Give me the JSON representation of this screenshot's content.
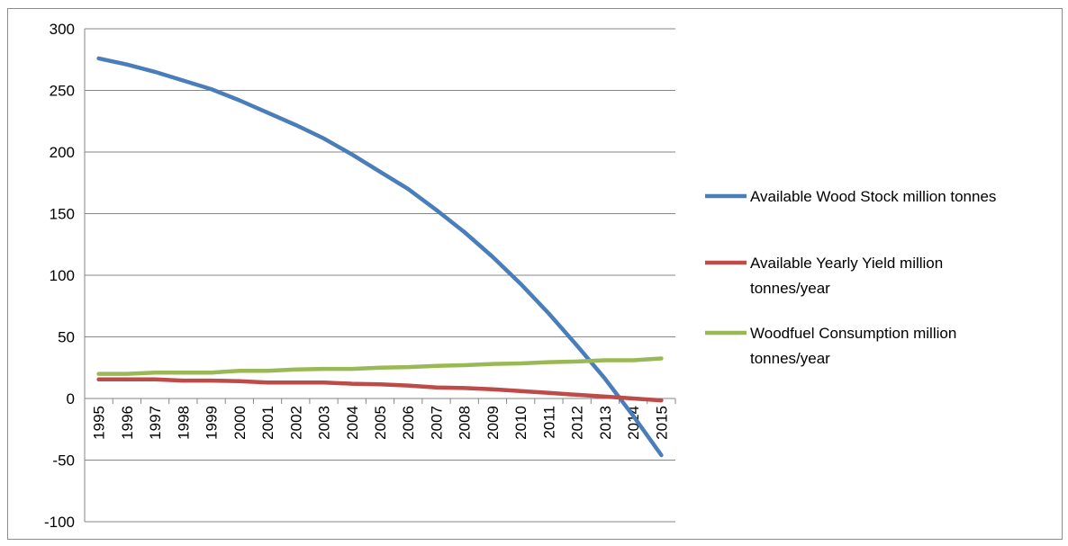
{
  "chart_data": {
    "type": "line",
    "title": "",
    "xlabel": "",
    "ylabel": "",
    "ylim": [
      -100,
      300
    ],
    "y_ticks": [
      300,
      250,
      200,
      150,
      100,
      50,
      0,
      -50,
      -100
    ],
    "grid": true,
    "legend_position": "right",
    "x": [
      "1995",
      "1996",
      "1997",
      "1998",
      "1999",
      "2000",
      "2001",
      "2002",
      "2003",
      "2004",
      "2005",
      "2006",
      "2007",
      "2008",
      "2009",
      "2010",
      "2011",
      "2012",
      "2013",
      "2014",
      "2015"
    ],
    "series": [
      {
        "name": "Available Wood Stock million tonnes",
        "legend_lines": [
          "Available Wood Stock million tonnes"
        ],
        "color": "#4a7ebb",
        "values": [
          276,
          271,
          265,
          258,
          251,
          242,
          232,
          222,
          211,
          198,
          184,
          170,
          153,
          135,
          115,
          93,
          69,
          43,
          16,
          -14,
          -46
        ]
      },
      {
        "name": "Available Yearly Yield million tonnes/year",
        "legend_lines": [
          "Available Yearly Yield million",
          "tonnes/year"
        ],
        "color": "#be4b48",
        "values": [
          15.5,
          15.5,
          15.5,
          14.5,
          14.5,
          14,
          13,
          13,
          13,
          12,
          11.5,
          10.5,
          9,
          8.5,
          7.5,
          6,
          4.5,
          3,
          1.5,
          0,
          -1.5
        ]
      },
      {
        "name": "Woodfuel Consumption million tonnes/year",
        "legend_lines": [
          "Woodfuel Consumption million",
          "tonnes/year"
        ],
        "color": "#98b954",
        "values": [
          20,
          20,
          21,
          21,
          21,
          22.5,
          22.5,
          23.5,
          24,
          24,
          25,
          25.5,
          26.5,
          27,
          28,
          28.5,
          29.5,
          30,
          31,
          31,
          32.5
        ]
      }
    ]
  }
}
